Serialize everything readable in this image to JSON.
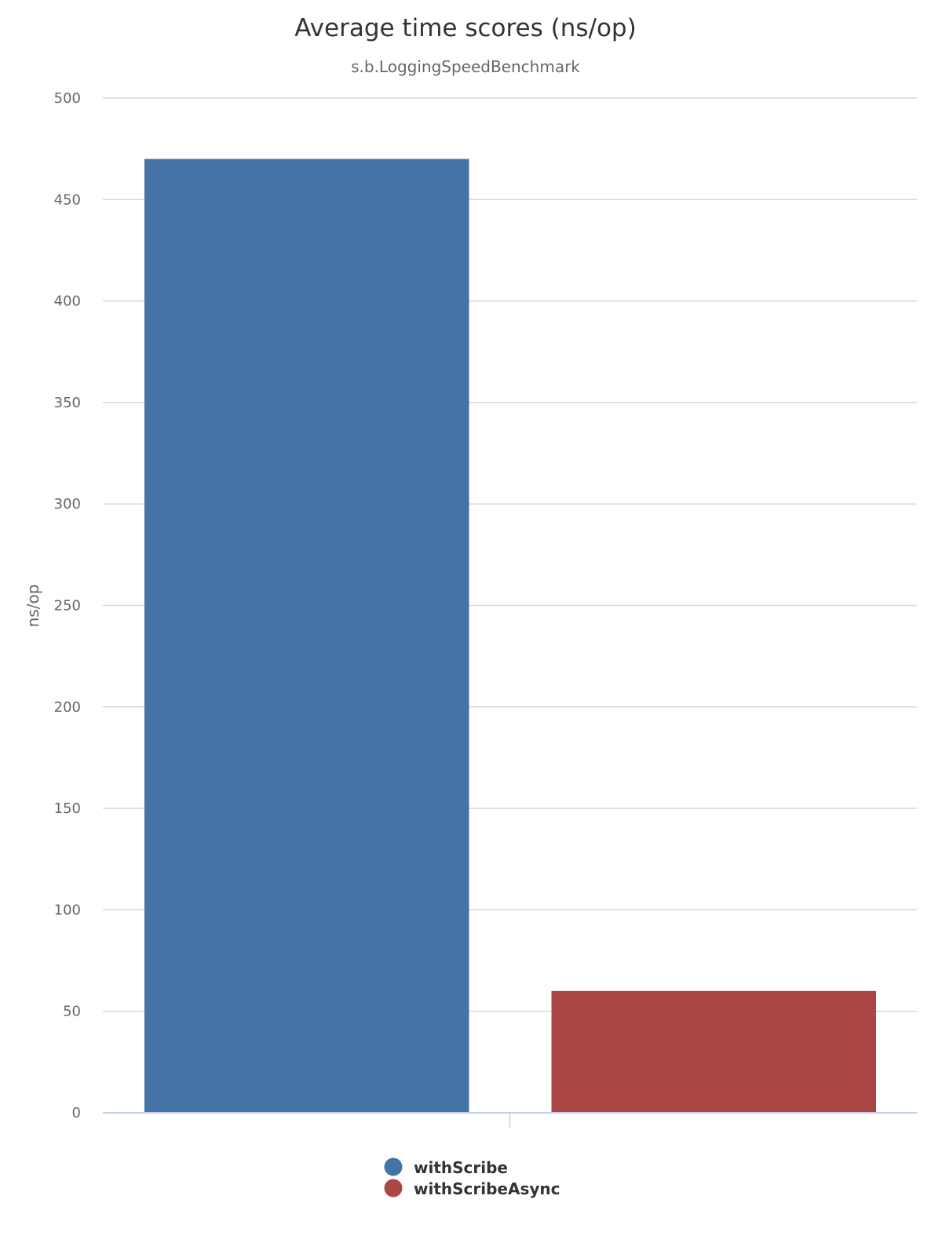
{
  "chart_data": {
    "type": "bar",
    "title": "Average time scores (ns/op)",
    "subtitle": "s.b.LoggingSpeedBenchmark",
    "xlabel": "",
    "ylabel": "ns/op",
    "ylim": [
      0,
      500
    ],
    "yticks": [
      0,
      50,
      100,
      150,
      200,
      250,
      300,
      350,
      400,
      450,
      500
    ],
    "categories": [
      ""
    ],
    "series": [
      {
        "name": "withScribe",
        "values": [
          470
        ],
        "color": "#4572A7"
      },
      {
        "name": "withScribeAsync",
        "values": [
          60
        ],
        "color": "#AA4643"
      }
    ],
    "grid": true,
    "legend_position": "bottom-center"
  }
}
